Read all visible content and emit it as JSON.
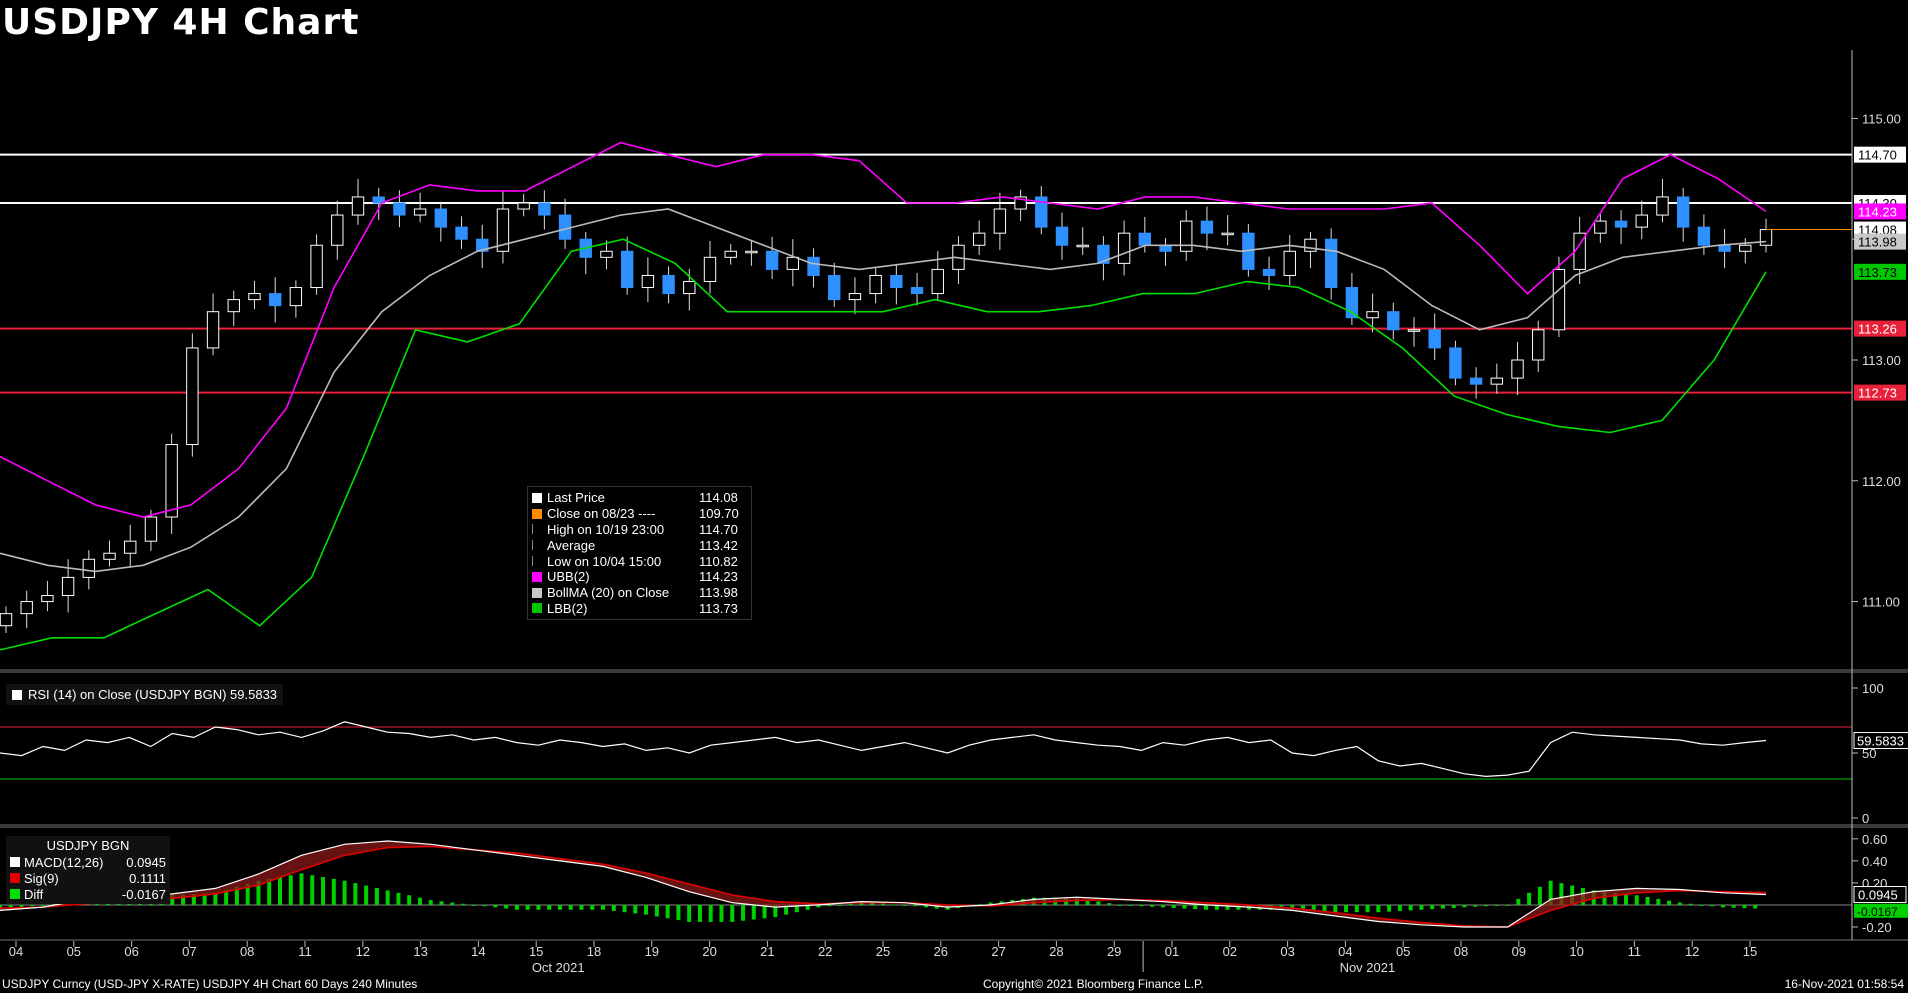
{
  "title": "USDJPY 4H Chart",
  "chart_data": {
    "type": "candlestick",
    "title": "USDJPY 4H Chart",
    "price_axis": {
      "ticks": [
        "115.00",
        "114.00",
        "113.00",
        "112.00",
        "111.00"
      ],
      "tick_values": [
        115.0,
        114.0,
        113.0,
        112.0,
        111.0
      ],
      "range": [
        110.45,
        115.55
      ]
    },
    "x_axis": {
      "ticks": [
        "04",
        "05",
        "06",
        "07",
        "08",
        "11",
        "12",
        "13",
        "14",
        "15",
        "18",
        "19",
        "20",
        "21",
        "22",
        "25",
        "26",
        "27",
        "28",
        "29",
        "01",
        "02",
        "03",
        "04",
        "05",
        "08",
        "09",
        "10",
        "11",
        "12",
        "15"
      ],
      "months": [
        {
          "label": "Oct 2021",
          "at_tick": 9
        },
        {
          "label": "Nov 2021",
          "at_tick": 23
        }
      ]
    },
    "horizontal_levels": [
      {
        "value": 114.7,
        "label": "114.70",
        "color": "#ffffff"
      },
      {
        "value": 114.3,
        "label": "114.30",
        "color": "#ffffff"
      },
      {
        "value": 113.26,
        "label": "113.26",
        "color": "#e8203a"
      },
      {
        "value": 112.73,
        "label": "112.73",
        "color": "#e8203a"
      }
    ],
    "price_tags": [
      {
        "value": 114.08,
        "label": "114.08",
        "bg": "#ffffff",
        "fg": "#000000"
      },
      {
        "value": 113.98,
        "label": "113.98",
        "bg": "#c8c8c8",
        "fg": "#000000"
      },
      {
        "value": 114.23,
        "label": "114.23",
        "bg": "#ff00ff",
        "fg": "#ffffff"
      },
      {
        "value": 113.73,
        "label": "113.73",
        "bg": "#00c800",
        "fg": "#000000"
      }
    ],
    "series_close": [
      110.9,
      111.0,
      111.05,
      111.2,
      111.35,
      111.4,
      111.5,
      111.7,
      112.3,
      113.1,
      113.4,
      113.5,
      113.55,
      113.45,
      113.6,
      113.95,
      114.2,
      114.35,
      114.3,
      114.2,
      114.25,
      114.1,
      114.0,
      113.9,
      114.25,
      114.3,
      114.2,
      114.0,
      113.85,
      113.9,
      113.6,
      113.7,
      113.55,
      113.65,
      113.85,
      113.9,
      113.9,
      113.75,
      113.85,
      113.7,
      113.5,
      113.55,
      113.7,
      113.6,
      113.55,
      113.75,
      113.95,
      114.05,
      114.25,
      114.35,
      114.1,
      113.95,
      113.95,
      113.8,
      114.05,
      113.95,
      113.9,
      114.15,
      114.05,
      114.05,
      113.75,
      113.7,
      113.9,
      114.0,
      113.6,
      113.35,
      113.4,
      113.25,
      113.25,
      113.1,
      112.85,
      112.8,
      112.85,
      113.0,
      113.25,
      113.75,
      114.05,
      114.15,
      114.1,
      114.2,
      114.35,
      114.1,
      113.95,
      113.9,
      113.95,
      114.08
    ],
    "bollinger": {
      "ubb": [
        112.2,
        112.0,
        111.8,
        111.7,
        111.8,
        112.1,
        112.6,
        113.6,
        114.3,
        114.45,
        114.4,
        114.4,
        114.6,
        114.8,
        114.7,
        114.6,
        114.7,
        114.7,
        114.65,
        114.3,
        114.3,
        114.35,
        114.3,
        114.25,
        114.35,
        114.35,
        114.3,
        114.25,
        114.25,
        114.25,
        114.3,
        113.95,
        113.55,
        113.9,
        114.5,
        114.7,
        114.5,
        114.23
      ],
      "mid": [
        111.4,
        111.3,
        111.25,
        111.3,
        111.45,
        111.7,
        112.1,
        112.9,
        113.4,
        113.7,
        113.9,
        114.0,
        114.1,
        114.2,
        114.25,
        114.1,
        113.95,
        113.8,
        113.75,
        113.8,
        113.85,
        113.8,
        113.75,
        113.8,
        113.95,
        113.95,
        113.9,
        113.95,
        113.9,
        113.75,
        113.45,
        113.25,
        113.35,
        113.7,
        113.85,
        113.9,
        113.95,
        113.98
      ],
      "lbb": [
        110.6,
        110.7,
        110.7,
        110.9,
        111.1,
        110.8,
        111.2,
        112.2,
        113.25,
        113.15,
        113.3,
        113.9,
        114.0,
        113.8,
        113.4,
        113.4,
        113.4,
        113.4,
        113.5,
        113.4,
        113.4,
        113.45,
        113.55,
        113.55,
        113.65,
        113.6,
        113.4,
        113.1,
        112.7,
        112.55,
        112.45,
        112.4,
        112.5,
        113.0,
        113.73
      ]
    },
    "legend": [
      {
        "name": "Last Price",
        "value": "114.08",
        "color": "#ffffff"
      },
      {
        "name": "Close on 08/23 ----",
        "value": "109.70",
        "color": "#ff8c00"
      },
      {
        "name": "High on 10/19 23:00",
        "value": "114.70",
        "color": "none"
      },
      {
        "name": "Average",
        "value": "113.42",
        "color": "none"
      },
      {
        "name": "Low on 10/04 15:00",
        "value": "110.82",
        "color": "none"
      },
      {
        "name": "UBB(2)",
        "value": "114.23",
        "color": "#ff00ff"
      },
      {
        "name": "BollMA (20)  on Close",
        "value": "113.98",
        "color": "#c8c8c8"
      },
      {
        "name": "LBB(2)",
        "value": "113.73",
        "color": "#00c800"
      }
    ],
    "rsi": {
      "label": "RSI (14)  on Close (USDJPY BGN) 59.5833",
      "ticks": [
        "100",
        "50",
        "0"
      ],
      "tick_values": [
        100,
        50,
        0
      ],
      "upper": 70,
      "lower": 30,
      "last_label": "59.5833",
      "values": [
        50,
        48,
        55,
        52,
        60,
        58,
        62,
        55,
        65,
        62,
        70,
        68,
        64,
        66,
        62,
        67,
        74,
        70,
        66,
        65,
        62,
        64,
        60,
        62,
        58,
        56,
        60,
        58,
        55,
        57,
        52,
        54,
        50,
        56,
        58,
        60,
        62,
        58,
        60,
        56,
        52,
        55,
        58,
        54,
        50,
        56,
        60,
        62,
        64,
        60,
        58,
        56,
        55,
        52,
        58,
        56,
        60,
        62,
        58,
        60,
        50,
        48,
        52,
        55,
        44,
        40,
        42,
        38,
        34,
        32,
        33,
        36,
        58,
        66,
        64,
        63,
        62,
        61,
        60,
        57,
        56,
        58,
        59.58
      ]
    },
    "macd": {
      "header": "USDJPY BGN",
      "ticks": [
        "0.60",
        "0.40",
        "0.20",
        "-0.20"
      ],
      "tick_values": [
        0.6,
        0.4,
        0.2,
        -0.2
      ],
      "macd_label": "MACD(12,26)",
      "macd_value": "0.0945",
      "sig_label": "Sig(9)",
      "sig_value": "0.1111",
      "diff_label": "Diff",
      "diff_value": "-0.0167",
      "macd": [
        -0.05,
        -0.02,
        0.05,
        0.08,
        0.1,
        0.15,
        0.28,
        0.45,
        0.55,
        0.58,
        0.55,
        0.5,
        0.45,
        0.4,
        0.35,
        0.25,
        0.12,
        0.02,
        -0.02,
        0.0,
        0.03,
        0.02,
        -0.02,
        0.0,
        0.05,
        0.07,
        0.05,
        0.03,
        0.0,
        -0.02,
        -0.05,
        -0.1,
        -0.15,
        -0.18,
        -0.2,
        -0.2,
        0.05,
        0.12,
        0.15,
        0.14,
        0.11,
        0.0945
      ],
      "sig": [
        -0.03,
        -0.02,
        0.01,
        0.04,
        0.06,
        0.1,
        0.18,
        0.32,
        0.45,
        0.52,
        0.53,
        0.5,
        0.47,
        0.42,
        0.37,
        0.29,
        0.19,
        0.09,
        0.03,
        0.01,
        0.02,
        0.02,
        0.0,
        -0.01,
        0.02,
        0.04,
        0.05,
        0.04,
        0.02,
        0.0,
        -0.03,
        -0.07,
        -0.12,
        -0.16,
        -0.19,
        -0.2,
        -0.05,
        0.06,
        0.11,
        0.13,
        0.12,
        0.1111
      ],
      "last_label": "0.0945",
      "diff_last_label": "-0.0167"
    }
  },
  "footer": {
    "left": "USDJPY Curncy (USD-JPY X-RATE) USDJPY 4H Chart 60 Days 240 Minutes",
    "center": "Copyright© 2021 Bloomberg Finance L.P.",
    "right": "16-Nov-2021 01:58:54"
  }
}
